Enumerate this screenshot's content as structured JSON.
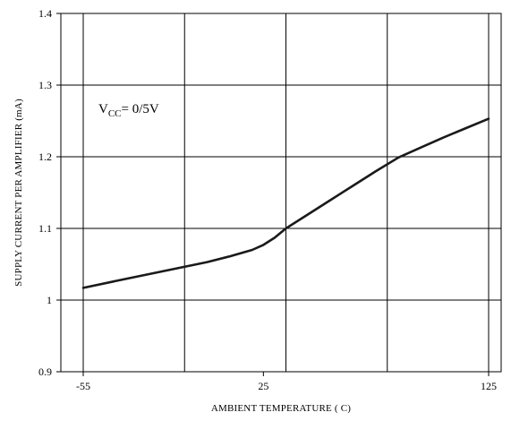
{
  "chart_data": {
    "type": "line",
    "title": "",
    "xlabel": "AMBIENT TEMPERATURE ( C)",
    "ylabel": "SUPPLY CURRENT PER AMPLIFIER (mA)",
    "xlim": [
      -55,
      125
    ],
    "ylim": [
      0.9,
      1.4
    ],
    "x_ticks": [
      -55,
      25,
      125
    ],
    "x_tick_labels": [
      "-55",
      "25",
      "125"
    ],
    "y_ticks": [
      0.9,
      1,
      1.1,
      1.2,
      1.3,
      1.4
    ],
    "y_tick_labels": [
      "0.9",
      "1",
      "1.1",
      "1.2",
      "1.3",
      "1.4"
    ],
    "grid": true,
    "annotation": {
      "main": "V",
      "subscript": "CC",
      "rest": "= 0/5V"
    },
    "series": [
      {
        "x": [
          -55,
          -40,
          -20,
          0,
          10,
          20,
          25,
          30,
          35,
          45,
          55,
          65,
          75,
          85,
          95,
          105,
          115,
          125
        ],
        "y": [
          1.017,
          1.027,
          1.04,
          1.053,
          1.061,
          1.07,
          1.077,
          1.087,
          1.1,
          1.12,
          1.14,
          1.16,
          1.18,
          1.199,
          1.213,
          1.227,
          1.24,
          1.253
        ]
      }
    ],
    "colors": {
      "line": "#1a1a1a",
      "grid": "#000000",
      "frame": "#000000"
    }
  }
}
